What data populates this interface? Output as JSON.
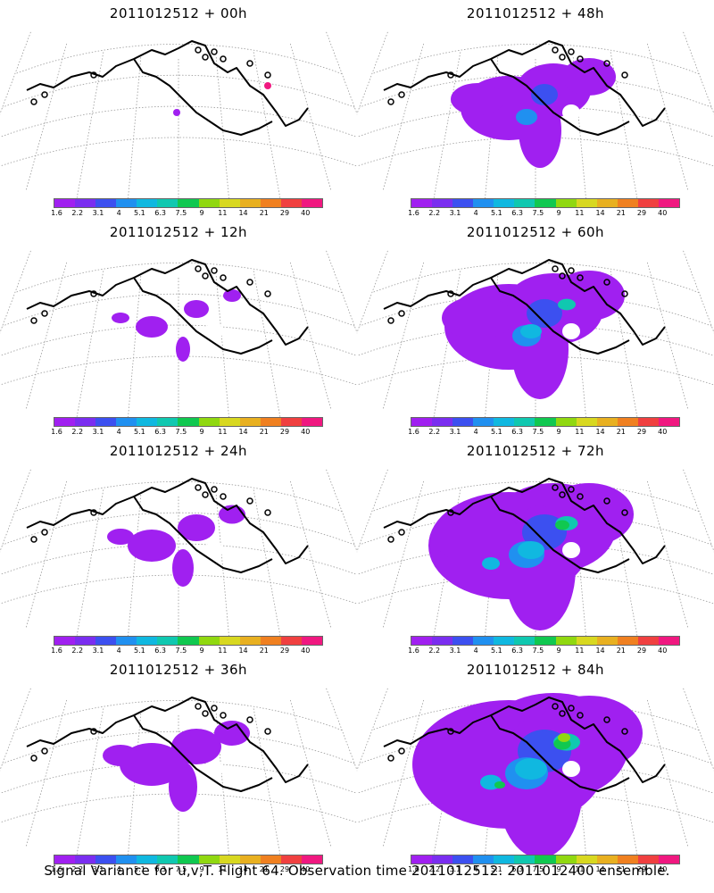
{
  "panels": [
    {
      "title": "2011012512 + 00h",
      "intensity": 0
    },
    {
      "title": "2011012512 + 48h",
      "intensity": 3
    },
    {
      "title": "2011012512 + 12h",
      "intensity": 1
    },
    {
      "title": "2011012512 + 60h",
      "intensity": 4
    },
    {
      "title": "2011012512 + 24h",
      "intensity": 1.5
    },
    {
      "title": "2011012512 + 72h",
      "intensity": 5
    },
    {
      "title": "2011012512 + 36h",
      "intensity": 2
    },
    {
      "title": "2011012512 + 84h",
      "intensity": 6
    }
  ],
  "legend": {
    "colors": [
      "#a020f0",
      "#7a2ef0",
      "#3c50f0",
      "#2090f0",
      "#10b8e0",
      "#10c8b0",
      "#10c850",
      "#90d810",
      "#d8d820",
      "#e8b020",
      "#f08020",
      "#f04040",
      "#f01880"
    ],
    "labels": [
      "1.6",
      "2.2",
      "3.1",
      "4",
      "5.1",
      "6.3",
      "7.5",
      "9",
      "11",
      "14",
      "21",
      "29",
      "40"
    ]
  },
  "caption": "Signal Variance for u,v,T. Flight 64. Observation time 2011012512. 2011012400 ensemble."
}
